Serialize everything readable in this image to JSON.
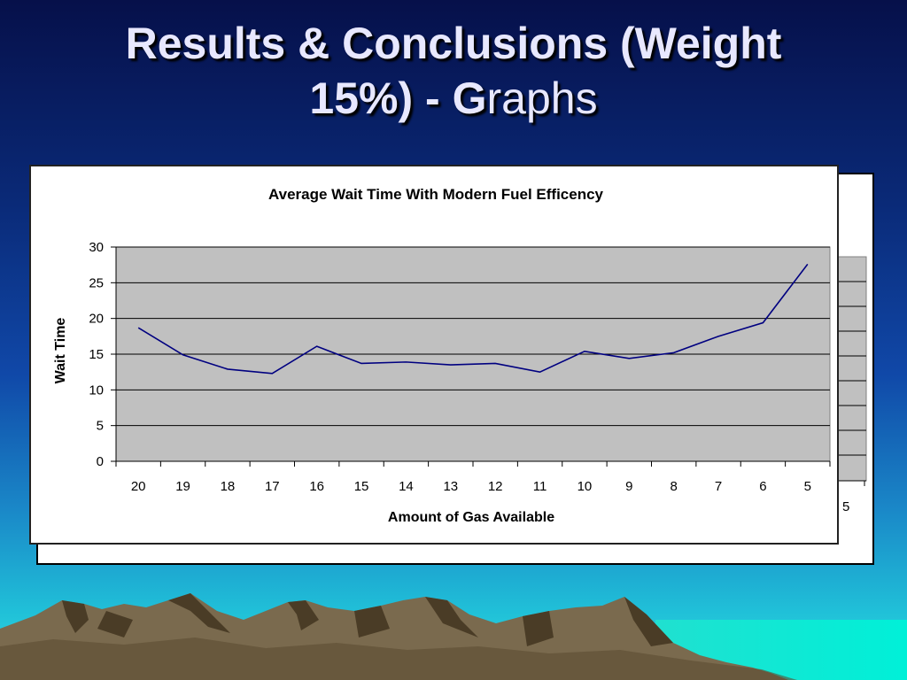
{
  "slide": {
    "title_line1": "Results & Conclusions (Weight",
    "title_line2_a": "15%) - ",
    "title_line2_b": "G",
    "title_line2_c": "raphs"
  },
  "colors": {
    "plot_bg": "#c0c0c0",
    "line": "#000080",
    "grid": "#000000"
  },
  "back_chart": {
    "visible_tick_label": "5"
  },
  "chart_data": {
    "type": "line",
    "title": "Average Wait Time With Modern Fuel Efficency",
    "xlabel": "Amount of Gas Available",
    "ylabel": "Wait Time",
    "categories": [
      "20",
      "19",
      "18",
      "17",
      "16",
      "15",
      "14",
      "13",
      "12",
      "11",
      "10",
      "9",
      "8",
      "7",
      "6",
      "5"
    ],
    "series": [
      {
        "values": [
          18.7,
          14.9,
          12.9,
          12.3,
          16.1,
          13.7,
          13.9,
          13.5,
          13.7,
          12.5,
          15.4,
          14.4,
          15.2,
          17.5,
          19.4,
          27.6
        ]
      }
    ],
    "ylim": [
      0,
      30
    ],
    "yticks": [
      0,
      5,
      10,
      15,
      20,
      25,
      30
    ],
    "grid": true,
    "legend": "none"
  }
}
